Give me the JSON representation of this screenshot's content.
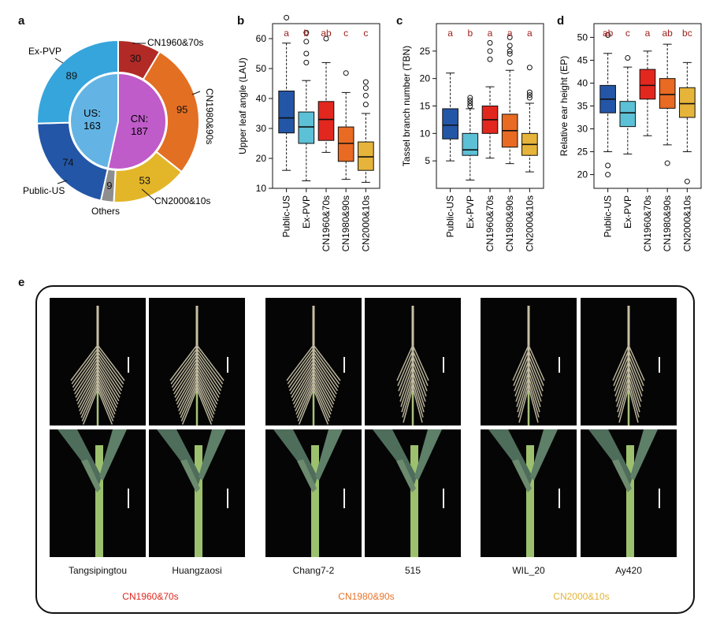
{
  "panel_labels": [
    "a",
    "b",
    "c",
    "d",
    "e"
  ],
  "colors": {
    "Public-US": "#1f4e9c",
    "Ex-PVP": "#4fb7cf",
    "CN1960&70s": "#e0271e",
    "CN1980&90s": "#e8732a",
    "CN2000&10s": "#e3b43a",
    "Others": "#8c8c8c",
    "US_inner": "#63b4e4",
    "CN_inner": "#bf5cc9",
    "label_red": "#9e1b18"
  },
  "chart_data": [
    {
      "type": "pie",
      "panel": "a",
      "outer": [
        {
          "label": "CN1960&70s",
          "value": 30
        },
        {
          "label": "CN1980&90s",
          "value": 95
        },
        {
          "label": "CN2000&10s",
          "value": 53
        },
        {
          "label": "Others",
          "value": 9
        },
        {
          "label": "Public-US",
          "value": 74
        },
        {
          "label": "Ex-PVP",
          "value": 89
        }
      ],
      "inner": [
        {
          "label": "CN:",
          "value": 187
        },
        {
          "label": "US:",
          "value": 163
        }
      ]
    },
    {
      "type": "box",
      "panel": "b",
      "ylabel": "Upper leaf angle (LAU)",
      "ylim": [
        10,
        65
      ],
      "yticks": [
        10,
        20,
        30,
        40,
        50,
        60
      ],
      "categories": [
        "Public-US",
        "Ex-PVP",
        "CN1960&70s",
        "CN1980&90s",
        "CN2000&10s"
      ],
      "letters": [
        "a",
        "b",
        "ab",
        "c",
        "c"
      ],
      "boxes": [
        {
          "lo": 16,
          "q1": 28.5,
          "med": 33.5,
          "q3": 42.5,
          "hi": 58.5,
          "out": [
            67
          ]
        },
        {
          "lo": 12.5,
          "q1": 25,
          "med": 30.5,
          "q3": 35.5,
          "hi": 46,
          "out": [
            52,
            55,
            59,
            62
          ]
        },
        {
          "lo": 22,
          "q1": 26,
          "med": 33,
          "q3": 39,
          "hi": 52,
          "out": [
            60
          ]
        },
        {
          "lo": 13,
          "q1": 19,
          "med": 25,
          "q3": 30.5,
          "hi": 42,
          "out": [
            48.5
          ]
        },
        {
          "lo": 12,
          "q1": 16,
          "med": 20.5,
          "q3": 25.5,
          "hi": 35,
          "out": [
            38,
            41,
            43.5,
            45.5
          ]
        }
      ]
    },
    {
      "type": "box",
      "panel": "c",
      "ylabel": "Tassel branch number (TBN)",
      "ylim": [
        0,
        30
      ],
      "yticks": [
        5,
        10,
        15,
        20,
        25
      ],
      "categories": [
        "Public-US",
        "Ex-PVP",
        "CN1960&70s",
        "CN1980&90s",
        "CN2000&10s"
      ],
      "letters": [
        "a",
        "b",
        "a",
        "a",
        "a"
      ],
      "boxes": [
        {
          "lo": 5,
          "q1": 9,
          "med": 11.5,
          "q3": 14.5,
          "hi": 21,
          "out": []
        },
        {
          "lo": 1.5,
          "q1": 6,
          "med": 7,
          "q3": 10,
          "hi": 14.5,
          "out": [
            15,
            15.5,
            16,
            16.5
          ]
        },
        {
          "lo": 5.5,
          "q1": 10,
          "med": 12.5,
          "q3": 15,
          "hi": 18.5,
          "out": [
            23.5,
            25,
            26.5
          ]
        },
        {
          "lo": 4.5,
          "q1": 7.5,
          "med": 10.5,
          "q3": 13.5,
          "hi": 21.5,
          "out": [
            23,
            24.5,
            25,
            26,
            27.5
          ]
        },
        {
          "lo": 3,
          "q1": 6,
          "med": 8,
          "q3": 10,
          "hi": 15.5,
          "out": [
            16.5,
            17,
            17.5,
            22
          ]
        }
      ]
    },
    {
      "type": "box",
      "panel": "d",
      "ylabel": "Relative ear height (EP)",
      "ylim": [
        17,
        53
      ],
      "yticks": [
        20,
        25,
        30,
        35,
        40,
        45,
        50
      ],
      "categories": [
        "Public-US",
        "Ex-PVP",
        "CN1960&70s",
        "CN1980&90s",
        "CN2000&10s"
      ],
      "letters": [
        "ab",
        "c",
        "a",
        "ab",
        "bc"
      ],
      "boxes": [
        {
          "lo": 25,
          "q1": 33.5,
          "med": 36.5,
          "q3": 39.5,
          "hi": 46.5,
          "out": [
            20,
            22,
            50.5
          ]
        },
        {
          "lo": 24.5,
          "q1": 30.5,
          "med": 33.5,
          "q3": 36,
          "hi": 43.5,
          "out": [
            45.5
          ]
        },
        {
          "lo": 28.5,
          "q1": 36.5,
          "med": 39.5,
          "q3": 43,
          "hi": 47,
          "out": []
        },
        {
          "lo": 26.5,
          "q1": 34.5,
          "med": 37.5,
          "q3": 41,
          "hi": 48.5,
          "out": [
            22.5
          ]
        },
        {
          "lo": 25,
          "q1": 32.5,
          "med": 35.5,
          "q3": 39,
          "hi": 44.5,
          "out": [
            18.5
          ]
        }
      ]
    }
  ],
  "photos": [
    {
      "name": "Tangsipingtou"
    },
    {
      "name": "Huangzaosi"
    },
    {
      "name": "Chang7-2"
    },
    {
      "name": "515"
    },
    {
      "name": "WIL_20"
    },
    {
      "name": "Ay420"
    }
  ],
  "photo_groups": [
    {
      "label": "CN1960&70s"
    },
    {
      "label": "CN1980&90s"
    },
    {
      "label": "CN2000&10s"
    }
  ]
}
